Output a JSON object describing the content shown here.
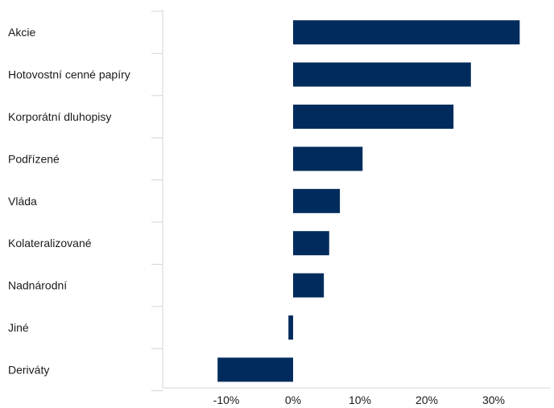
{
  "chart_data": {
    "type": "bar",
    "orientation": "horizontal",
    "categories": [
      "Akcie",
      "Hotovostní cenné papíry",
      "Korporátní dluhopisy",
      "Podřízené",
      "Vláda",
      "Kolateralizované",
      "Nadnárodní",
      "Jiné",
      "Deriváty"
    ],
    "values": [
      33.9,
      26.6,
      24.0,
      10.4,
      7.0,
      5.4,
      4.6,
      -0.7,
      -11.3
    ],
    "units": "%",
    "xlim": [
      -20,
      40
    ],
    "xticks": [
      -10,
      0,
      10,
      20,
      30
    ],
    "xtick_labels": [
      "-10%",
      "0%",
      "10%",
      "20%",
      "30%"
    ],
    "bar_color": "#002b5c",
    "axis_color": "#d4d4d4",
    "grid": false,
    "legend": "none"
  }
}
